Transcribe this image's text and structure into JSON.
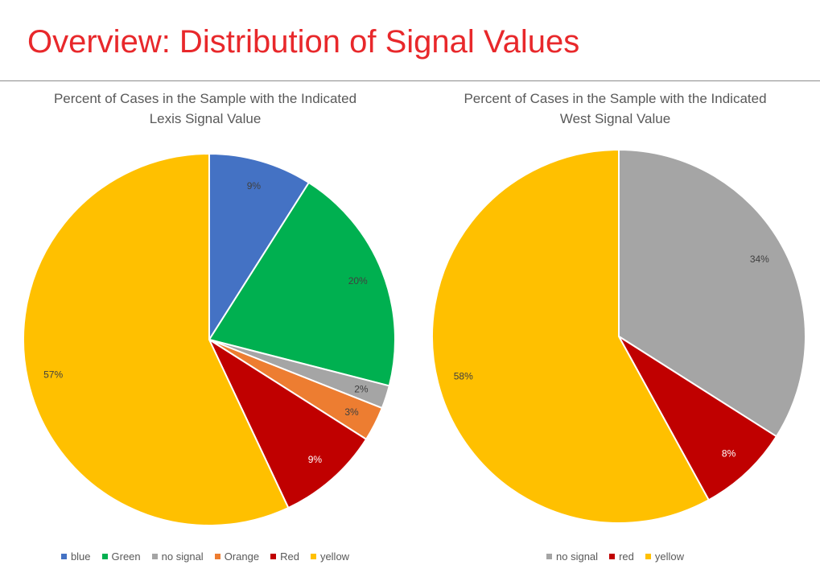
{
  "slide": {
    "title": "Overview: Distribution of Signal Values"
  },
  "chart_data": [
    {
      "type": "pie",
      "title": "Percent of Cases in the Sample with the Indicated\nLexis Signal Value",
      "categories": [
        "blue",
        "Green",
        "no signal",
        "Orange",
        "Red",
        "yellow"
      ],
      "values": [
        9,
        20,
        2,
        3,
        9,
        57
      ],
      "labels": [
        "9%",
        "20%",
        "2%",
        "3%",
        "9%",
        "57%"
      ],
      "colors": [
        "#4472c4",
        "#00b050",
        "#a5a5a5",
        "#ed7d31",
        "#c00000",
        "#ffc000"
      ],
      "label_colors": [
        "#404040",
        "#404040",
        "#404040",
        "#404040",
        "#ffffff",
        "#404040"
      ],
      "legend_position": "bottom"
    },
    {
      "type": "pie",
      "title": "Percent of Cases in the Sample with the Indicated\nWest Signal Value",
      "categories": [
        "no signal",
        "red",
        "yellow"
      ],
      "values": [
        34,
        8,
        58
      ],
      "labels": [
        "34%",
        "8%",
        "58%"
      ],
      "colors": [
        "#a5a5a5",
        "#c00000",
        "#ffc000"
      ],
      "label_colors": [
        "#404040",
        "#ffffff",
        "#404040"
      ],
      "legend_position": "bottom"
    }
  ]
}
